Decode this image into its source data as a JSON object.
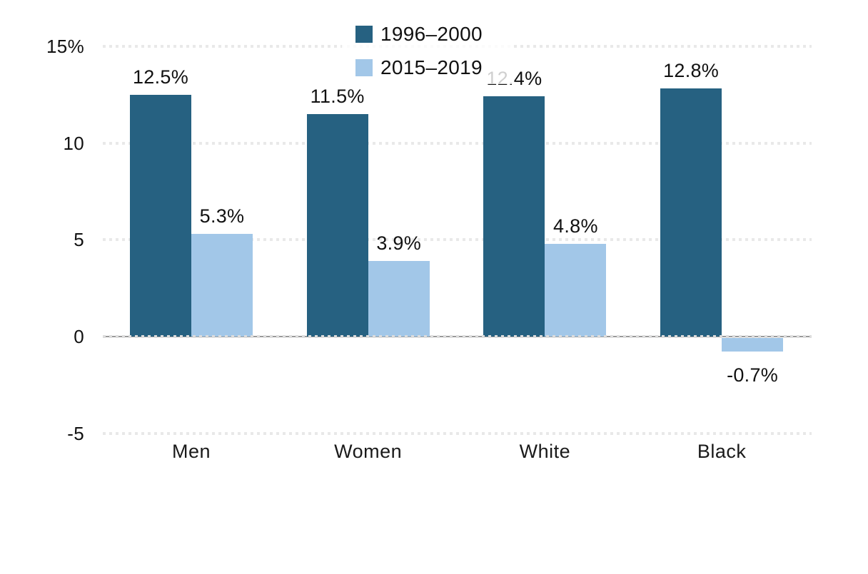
{
  "chart_data": {
    "type": "bar",
    "title": "",
    "categories": [
      "Men",
      "Women",
      "White",
      "Black"
    ],
    "series": [
      {
        "name": "1996–2000",
        "color": "#266181",
        "values": [
          12.5,
          11.5,
          12.4,
          12.8
        ],
        "labels": [
          "12.5%",
          "11.5%",
          "12.4%",
          "12.8%"
        ]
      },
      {
        "name": "2015–2019",
        "color": "#a2c7e8",
        "values": [
          5.3,
          3.9,
          4.8,
          -0.7
        ],
        "labels": [
          "5.3%",
          "3.9%",
          "4.8%",
          "-0.7%"
        ]
      }
    ],
    "y_axis": {
      "range": [
        -5,
        15
      ],
      "ticks": [
        {
          "value": 15,
          "label": "15%"
        },
        {
          "value": 10,
          "label": "10"
        },
        {
          "value": 5,
          "label": "5"
        },
        {
          "value": 0,
          "label": "0"
        },
        {
          "value": -5,
          "label": "-5"
        }
      ]
    },
    "grid": "dotted-horizontal",
    "legend_position": "top-center",
    "colors": {
      "axis_line": "#9a9a9a",
      "gridline": "#e9e9e9",
      "text": "#111111"
    }
  }
}
